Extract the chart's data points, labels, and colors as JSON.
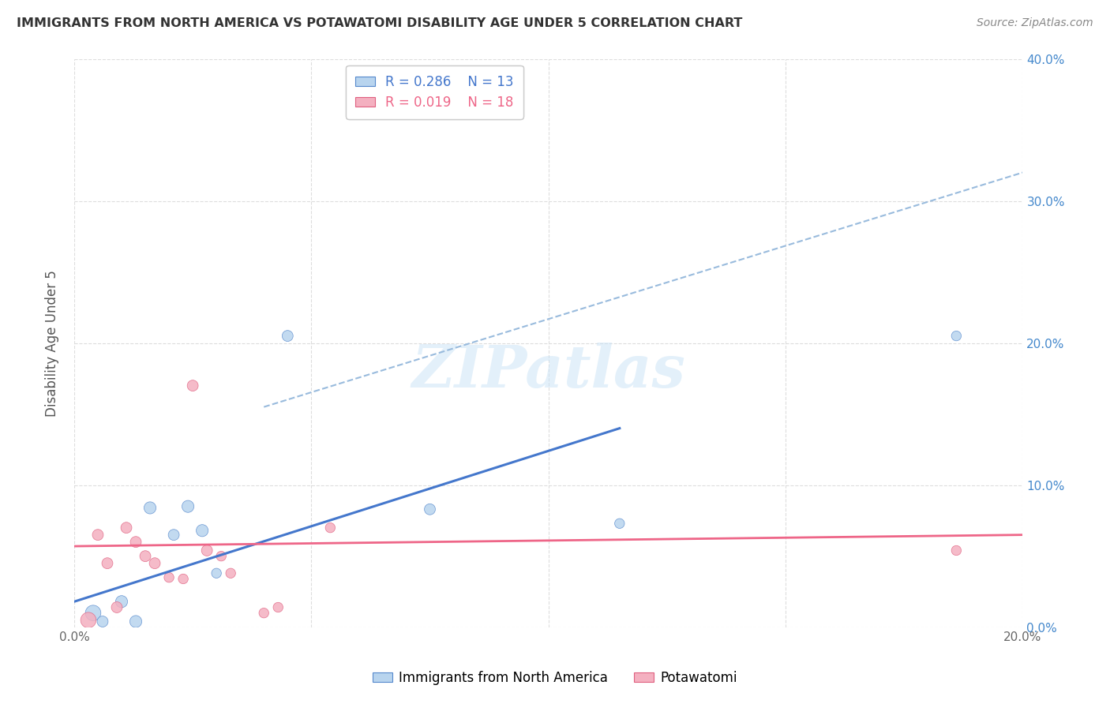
{
  "title": "IMMIGRANTS FROM NORTH AMERICA VS POTAWATOMI DISABILITY AGE UNDER 5 CORRELATION CHART",
  "source": "Source: ZipAtlas.com",
  "ylabel": "Disability Age Under 5",
  "xlim": [
    0.0,
    0.2
  ],
  "ylim": [
    0.0,
    0.4
  ],
  "blue_R": "0.286",
  "blue_N": "13",
  "pink_R": "0.019",
  "pink_N": "18",
  "blue_fill_color": "#b8d4ee",
  "pink_fill_color": "#f4b0c0",
  "blue_edge_color": "#5588cc",
  "pink_edge_color": "#e06080",
  "blue_line_color": "#4477cc",
  "pink_line_color": "#ee6688",
  "dashed_line_color": "#99bbdd",
  "legend_label_blue": "Immigrants from North America",
  "legend_label_pink": "Potawatomi",
  "blue_scatter_x": [
    0.004,
    0.006,
    0.01,
    0.013,
    0.016,
    0.021,
    0.024,
    0.027,
    0.03,
    0.045,
    0.075,
    0.115,
    0.186
  ],
  "blue_scatter_y": [
    0.01,
    0.004,
    0.018,
    0.004,
    0.084,
    0.065,
    0.085,
    0.068,
    0.038,
    0.205,
    0.083,
    0.073,
    0.205
  ],
  "blue_scatter_sizes": [
    200,
    100,
    120,
    120,
    120,
    100,
    120,
    120,
    80,
    100,
    100,
    80,
    80
  ],
  "pink_scatter_x": [
    0.003,
    0.005,
    0.007,
    0.009,
    0.011,
    0.013,
    0.015,
    0.017,
    0.02,
    0.023,
    0.025,
    0.028,
    0.031,
    0.033,
    0.04,
    0.043,
    0.054,
    0.186
  ],
  "pink_scatter_y": [
    0.005,
    0.065,
    0.045,
    0.014,
    0.07,
    0.06,
    0.05,
    0.045,
    0.035,
    0.034,
    0.17,
    0.054,
    0.05,
    0.038,
    0.01,
    0.014,
    0.07,
    0.054
  ],
  "pink_scatter_sizes": [
    200,
    100,
    100,
    100,
    100,
    100,
    100,
    100,
    80,
    80,
    100,
    100,
    80,
    80,
    80,
    80,
    80,
    80
  ],
  "blue_trend_x": [
    0.0,
    0.115
  ],
  "blue_trend_y": [
    0.018,
    0.14
  ],
  "dashed_trend_x": [
    0.04,
    0.2
  ],
  "dashed_trend_y": [
    0.155,
    0.32
  ],
  "pink_trend_x": [
    0.0,
    0.2
  ],
  "pink_trend_y": [
    0.057,
    0.065
  ],
  "watermark": "ZIPatlas",
  "background_color": "#ffffff",
  "grid_color": "#dddddd",
  "right_tick_color": "#4488cc",
  "right_tick_labels": [
    "0.0%",
    "10.0%",
    "20.0%",
    "30.0%",
    "40.0%"
  ],
  "right_yticks": [
    0.0,
    0.1,
    0.2,
    0.3,
    0.4
  ]
}
